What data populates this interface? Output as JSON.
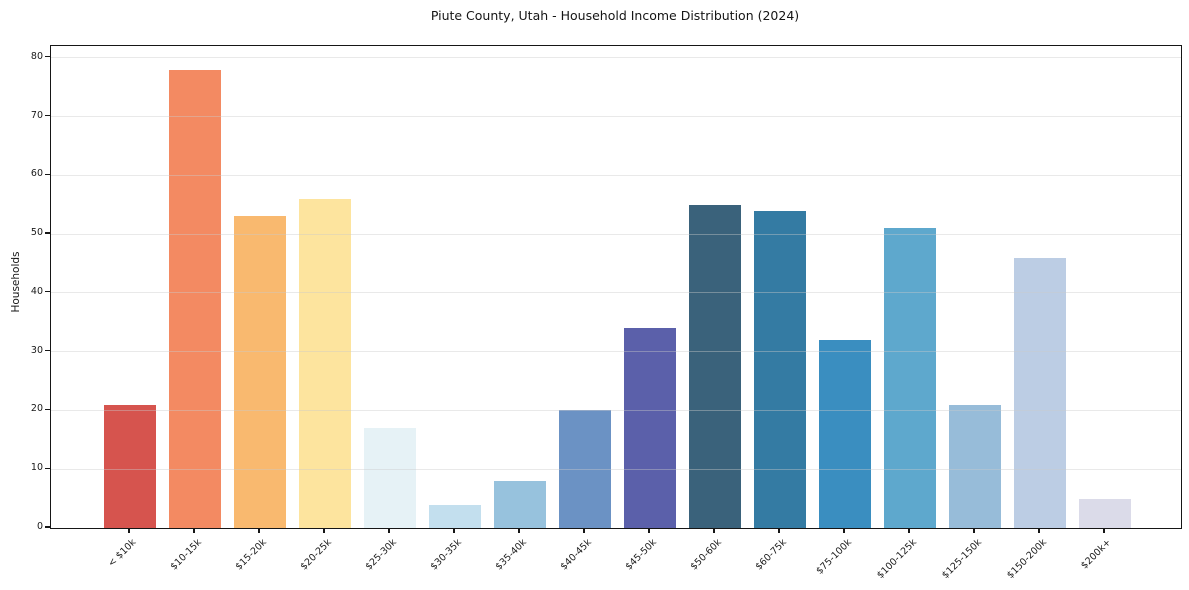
{
  "chart_data": {
    "type": "bar",
    "title": "Piute County, Utah - Household Income Distribution (2024)",
    "xlabel": "",
    "ylabel": "Households",
    "categories": [
      "< $10k",
      "$10-15k",
      "$15-20k",
      "$20-25k",
      "$25-30k",
      "$30-35k",
      "$35-40k",
      "$40-45k",
      "$45-50k",
      "$50-60k",
      "$60-75k",
      "$75-100k",
      "$100-125k",
      "$125-150k",
      "$150-200k",
      "$200k+"
    ],
    "values": [
      21,
      78,
      53,
      56,
      17,
      4,
      8,
      20,
      34,
      55,
      54,
      32,
      51,
      21,
      46,
      5
    ],
    "bar_colors": [
      "#d6544e",
      "#f38a62",
      "#f9b96f",
      "#fde49e",
      "#e6f2f6",
      "#c3dfee",
      "#97c2dd",
      "#6b92c4",
      "#5b60aa",
      "#3a627b",
      "#347ba3",
      "#3a8ec0",
      "#5ea8cd",
      "#97bcd9",
      "#bccde4",
      "#dbdbe9"
    ],
    "yticks": [
      0,
      10,
      20,
      30,
      40,
      50,
      60,
      70,
      80
    ],
    "ylim": [
      0,
      82
    ],
    "grid": "horizontal-light",
    "legend": "none",
    "background_color": "#ffffff",
    "spine_color": "#161616"
  }
}
